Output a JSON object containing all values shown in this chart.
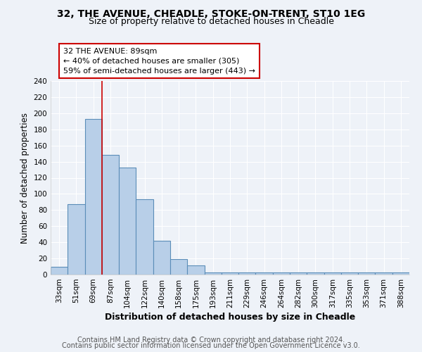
{
  "title1": "32, THE AVENUE, CHEADLE, STOKE-ON-TRENT, ST10 1EG",
  "title2": "Size of property relative to detached houses in Cheadle",
  "xlabel": "Distribution of detached houses by size in Cheadle",
  "ylabel": "Number of detached properties",
  "categories": [
    "33sqm",
    "51sqm",
    "69sqm",
    "87sqm",
    "104sqm",
    "122sqm",
    "140sqm",
    "158sqm",
    "175sqm",
    "193sqm",
    "211sqm",
    "229sqm",
    "246sqm",
    "264sqm",
    "282sqm",
    "300sqm",
    "317sqm",
    "335sqm",
    "353sqm",
    "371sqm",
    "388sqm"
  ],
  "values": [
    10,
    87,
    193,
    148,
    133,
    93,
    42,
    19,
    11,
    3,
    3,
    3,
    3,
    3,
    3,
    3,
    3,
    3,
    3,
    3,
    3
  ],
  "bar_color": "#b8cfe8",
  "bar_edge_color": "#5b8db8",
  "vline_color": "#cc0000",
  "vline_index": 2.5,
  "annotation_text": "32 THE AVENUE: 89sqm\n← 40% of detached houses are smaller (305)\n59% of semi-detached houses are larger (443) →",
  "annotation_box_color": "white",
  "annotation_box_edge": "#cc0000",
  "footer1": "Contains HM Land Registry data © Crown copyright and database right 2024.",
  "footer2": "Contains public sector information licensed under the Open Government Licence v3.0.",
  "ylim": [
    0,
    240
  ],
  "yticks": [
    0,
    20,
    40,
    60,
    80,
    100,
    120,
    140,
    160,
    180,
    200,
    220,
    240
  ],
  "bg_color": "#eef2f8",
  "grid_color": "#ffffff",
  "title1_fontsize": 10,
  "title2_fontsize": 9,
  "xlabel_fontsize": 9,
  "ylabel_fontsize": 8.5,
  "tick_fontsize": 7.5,
  "annotation_fontsize": 8,
  "footer_fontsize": 7
}
